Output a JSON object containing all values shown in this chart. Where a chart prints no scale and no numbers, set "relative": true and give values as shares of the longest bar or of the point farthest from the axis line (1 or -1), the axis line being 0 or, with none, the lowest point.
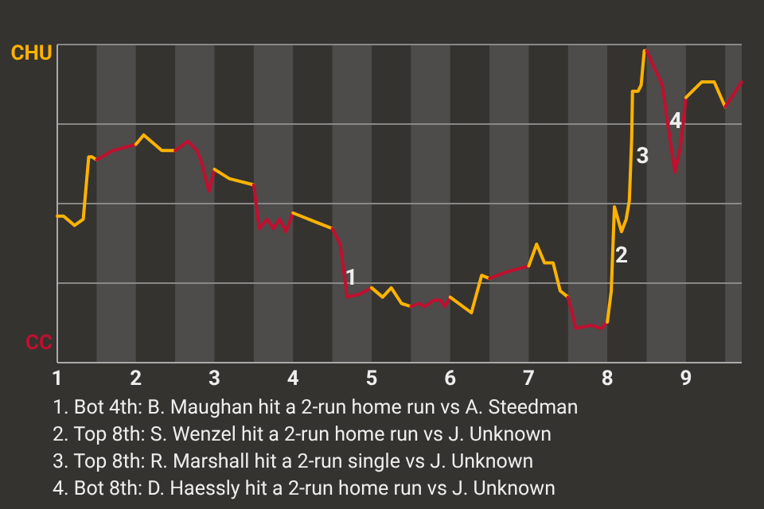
{
  "chart_data": {
    "type": "line",
    "relative": true,
    "xlim": [
      1,
      9.71
    ],
    "xticks": [
      1,
      2,
      3,
      4,
      5,
      6,
      7,
      8,
      9
    ],
    "grid": "y",
    "bands": [
      {
        "axis": "x",
        "from": 1.5,
        "to": 2,
        "color": "#4d4c4a"
      },
      {
        "axis": "x",
        "from": 2.5,
        "to": 3,
        "color": "#4d4c4a"
      },
      {
        "axis": "x",
        "from": 3.5,
        "to": 4,
        "color": "#4d4c4a"
      },
      {
        "axis": "x",
        "from": 4.5,
        "to": 5,
        "color": "#4d4c4a"
      },
      {
        "axis": "x",
        "from": 5.5,
        "to": 6,
        "color": "#4d4c4a"
      },
      {
        "axis": "x",
        "from": 6.5,
        "to": 7,
        "color": "#4d4c4a"
      },
      {
        "axis": "x",
        "from": 7.5,
        "to": 8,
        "color": "#4d4c4a"
      },
      {
        "axis": "x",
        "from": 8.5,
        "to": 9,
        "color": "#4d4c4a"
      },
      {
        "axis": "x",
        "from": 9.5,
        "to": 9.71,
        "color": "#4d4c4a"
      }
    ],
    "series": [
      {
        "color": "#ffb300",
        "x": [
          1,
          1.08,
          1.22,
          1.33,
          1.4,
          1.44,
          1.5
        ],
        "values": [
          0.47,
          0.47,
          0.44,
          0.46,
          0.66,
          0.66,
          0.65
        ]
      },
      {
        "color": "#c0102f",
        "x": [
          1.5,
          1.71,
          2
        ],
        "values": [
          0.65,
          0.68,
          0.7
        ]
      },
      {
        "color": "#ffb300",
        "x": [
          2,
          2.1,
          2.33,
          2.5
        ],
        "values": [
          0.7,
          0.73,
          0.68,
          0.68
        ]
      },
      {
        "color": "#c0102f",
        "x": [
          2.5,
          2.66,
          2.78,
          2.85,
          2.93,
          3
        ],
        "values": [
          0.68,
          0.71,
          0.68,
          0.63,
          0.55,
          0.62
        ]
      },
      {
        "color": "#ffb300",
        "x": [
          3,
          3.19,
          3.5
        ],
        "values": [
          0.62,
          0.59,
          0.57
        ]
      },
      {
        "color": "#c0102f",
        "x": [
          3.5,
          3.57,
          3.67,
          3.75,
          3.83,
          3.91,
          4
        ],
        "values": [
          0.57,
          0.43,
          0.46,
          0.43,
          0.46,
          0.42,
          0.48
        ]
      },
      {
        "color": "#ffb300",
        "x": [
          4,
          4.3,
          4.5
        ],
        "values": [
          0.48,
          0.45,
          0.43
        ]
      },
      {
        "color": "#c0102f",
        "x": [
          4.5,
          4.6,
          4.69,
          4.85,
          5
        ],
        "values": [
          0.43,
          0.38,
          0.21,
          0.22,
          0.24
        ]
      },
      {
        "color": "#ffb300",
        "x": [
          5,
          5.14,
          5.25,
          5.38,
          5.5
        ],
        "values": [
          0.24,
          0.21,
          0.24,
          0.19,
          0.18
        ]
      },
      {
        "color": "#c0102f",
        "x": [
          5.5,
          5.6,
          5.68,
          5.79,
          5.88,
          5.93,
          6
        ],
        "values": [
          0.18,
          0.19,
          0.18,
          0.2,
          0.2,
          0.18,
          0.21
        ]
      },
      {
        "color": "#ffb300",
        "x": [
          6,
          6.27,
          6.4,
          6.5
        ],
        "values": [
          0.21,
          0.16,
          0.28,
          0.27
        ]
      },
      {
        "color": "#c0102f",
        "x": [
          6.5,
          6.71,
          7
        ],
        "values": [
          0.27,
          0.29,
          0.31
        ]
      },
      {
        "color": "#ffb300",
        "x": [
          7,
          7.1,
          7.2,
          7.31,
          7.4,
          7.5
        ],
        "values": [
          0.31,
          0.38,
          0.32,
          0.32,
          0.23,
          0.21
        ]
      },
      {
        "color": "#c0102f",
        "x": [
          7.5,
          7.6,
          7.79,
          7.92,
          8
        ],
        "values": [
          0.21,
          0.11,
          0.12,
          0.11,
          0.13
        ]
      },
      {
        "color": "#ffb300",
        "x": [
          8,
          8.05,
          8.09,
          8.18,
          8.24,
          8.28,
          8.31,
          8.32,
          8.39,
          8.43,
          8.47,
          8.5
        ],
        "values": [
          0.13,
          0.23,
          0.5,
          0.42,
          0.46,
          0.52,
          0.72,
          0.87,
          0.87,
          0.89,
          1,
          1
        ]
      },
      {
        "color": "#c0102f",
        "x": [
          8.5,
          8.7,
          8.76,
          8.86,
          8.93,
          9
        ],
        "values": [
          1,
          0.89,
          0.78,
          0.61,
          0.69,
          0.85
        ]
      },
      {
        "color": "#ffb300",
        "x": [
          9,
          9.2,
          9.36,
          9.5
        ],
        "values": [
          0.85,
          0.9,
          0.9,
          0.82
        ]
      },
      {
        "color": "#c0102f",
        "x": [
          9.5,
          9.71
        ],
        "values": [
          0.82,
          0.9
        ]
      }
    ],
    "annotations": [
      "CHU",
      "CC",
      {
        "text": "1",
        "x": 4.74,
        "y": 0.27
      },
      {
        "text": "2",
        "x": 8.18,
        "y": 0.34
      },
      {
        "text": "3",
        "x": 8.45,
        "y": 0.66
      },
      {
        "text": "4",
        "x": 8.87,
        "y": 0.77
      },
      "1. Bot 4th: B. Maughan hit a 2-run home run vs A. Steedman",
      "2. Top 8th: S. Wenzel hit a 2-run home run vs J. Unknown",
      "3. Top 8th: R. Marshall hit a 2-run single vs J. Unknown",
      "4. Bot 8th: D. Haessly hit a 2-run home run vs J. Unknown"
    ]
  }
}
